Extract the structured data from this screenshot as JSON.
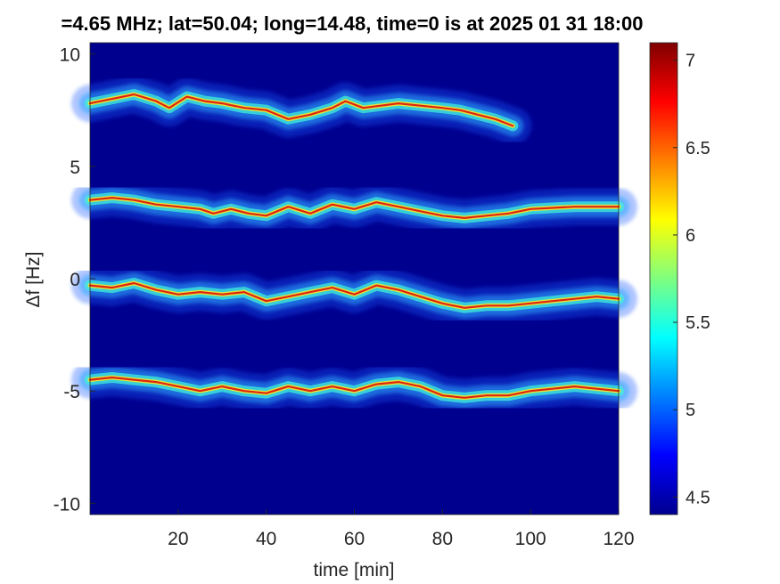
{
  "chart_data": {
    "type": "heatmap",
    "title": "=4.65 MHz;  lat=50.04; long=14.48, time=0 is at 2025 01 31 18:00",
    "xlabel": "time [min]",
    "ylabel": "Δf [Hz]",
    "xlim": [
      0,
      120
    ],
    "ylim": [
      -10.5,
      10.5
    ],
    "x_ticks": [
      20,
      40,
      60,
      80,
      100,
      120
    ],
    "y_ticks": [
      -10,
      -5,
      0,
      5,
      10
    ],
    "x_tick_labels": [
      "20",
      "40",
      "60",
      "80",
      "100",
      "120"
    ],
    "y_tick_labels": [
      "-10",
      "-5",
      "0",
      "5",
      "10"
    ],
    "colorbar": {
      "range": [
        4.4,
        7.1
      ],
      "ticks": [
        4.5,
        5,
        5.5,
        6,
        6.5,
        7
      ],
      "tick_labels": [
        "4.5",
        "5",
        "5.5",
        "6",
        "6.5",
        "7"
      ],
      "colormap": "jet",
      "background_color": "#00008f"
    },
    "traces": [
      {
        "name": "trace-upper",
        "end_time": 96,
        "points": [
          [
            0,
            7.8
          ],
          [
            5,
            8.0
          ],
          [
            10,
            8.2
          ],
          [
            15,
            7.9
          ],
          [
            18,
            7.6
          ],
          [
            22,
            8.1
          ],
          [
            26,
            7.9
          ],
          [
            30,
            7.8
          ],
          [
            35,
            7.6
          ],
          [
            40,
            7.5
          ],
          [
            45,
            7.1
          ],
          [
            50,
            7.3
          ],
          [
            55,
            7.6
          ],
          [
            58,
            7.9
          ],
          [
            62,
            7.6
          ],
          [
            66,
            7.7
          ],
          [
            70,
            7.8
          ],
          [
            75,
            7.7
          ],
          [
            80,
            7.6
          ],
          [
            84,
            7.5
          ],
          [
            88,
            7.3
          ],
          [
            92,
            7.1
          ],
          [
            96,
            6.8
          ]
        ]
      },
      {
        "name": "trace-second",
        "end_time": 120,
        "points": [
          [
            0,
            3.5
          ],
          [
            5,
            3.6
          ],
          [
            10,
            3.5
          ],
          [
            15,
            3.3
          ],
          [
            20,
            3.2
          ],
          [
            25,
            3.1
          ],
          [
            28,
            2.9
          ],
          [
            32,
            3.1
          ],
          [
            36,
            2.9
          ],
          [
            40,
            2.8
          ],
          [
            45,
            3.2
          ],
          [
            50,
            2.9
          ],
          [
            55,
            3.3
          ],
          [
            60,
            3.1
          ],
          [
            65,
            3.4
          ],
          [
            70,
            3.2
          ],
          [
            75,
            3.0
          ],
          [
            80,
            2.8
          ],
          [
            85,
            2.7
          ],
          [
            90,
            2.8
          ],
          [
            95,
            2.9
          ],
          [
            100,
            3.1
          ],
          [
            110,
            3.2
          ],
          [
            120,
            3.2
          ]
        ]
      },
      {
        "name": "trace-third",
        "end_time": 120,
        "points": [
          [
            0,
            -0.3
          ],
          [
            5,
            -0.4
          ],
          [
            10,
            -0.2
          ],
          [
            15,
            -0.5
          ],
          [
            20,
            -0.7
          ],
          [
            25,
            -0.6
          ],
          [
            30,
            -0.7
          ],
          [
            35,
            -0.6
          ],
          [
            40,
            -1.0
          ],
          [
            45,
            -0.8
          ],
          [
            50,
            -0.6
          ],
          [
            55,
            -0.4
          ],
          [
            60,
            -0.7
          ],
          [
            65,
            -0.3
          ],
          [
            70,
            -0.5
          ],
          [
            75,
            -0.8
          ],
          [
            80,
            -1.1
          ],
          [
            85,
            -1.3
          ],
          [
            90,
            -1.2
          ],
          [
            95,
            -1.2
          ],
          [
            100,
            -1.1
          ],
          [
            105,
            -1.0
          ],
          [
            110,
            -0.9
          ],
          [
            115,
            -0.8
          ],
          [
            120,
            -0.9
          ]
        ]
      },
      {
        "name": "trace-lower",
        "end_time": 120,
        "points": [
          [
            0,
            -4.5
          ],
          [
            5,
            -4.4
          ],
          [
            10,
            -4.5
          ],
          [
            15,
            -4.6
          ],
          [
            20,
            -4.8
          ],
          [
            25,
            -5.0
          ],
          [
            30,
            -4.8
          ],
          [
            35,
            -5.0
          ],
          [
            40,
            -5.1
          ],
          [
            45,
            -4.8
          ],
          [
            50,
            -5.0
          ],
          [
            55,
            -4.8
          ],
          [
            60,
            -5.0
          ],
          [
            65,
            -4.7
          ],
          [
            70,
            -4.6
          ],
          [
            75,
            -4.8
          ],
          [
            80,
            -5.2
          ],
          [
            85,
            -5.3
          ],
          [
            90,
            -5.2
          ],
          [
            95,
            -5.2
          ],
          [
            100,
            -5.0
          ],
          [
            105,
            -4.9
          ],
          [
            110,
            -4.8
          ],
          [
            115,
            -4.9
          ],
          [
            120,
            -5.0
          ]
        ]
      }
    ]
  }
}
